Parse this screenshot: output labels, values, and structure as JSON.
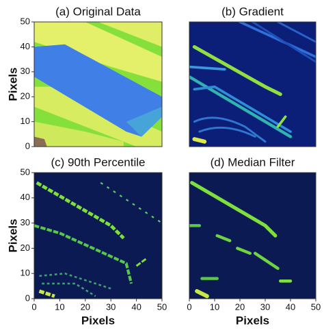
{
  "chart_data": [
    {
      "type": "image",
      "title": "(a) Original Data",
      "ylabel": "Pixels",
      "xlim": [
        0,
        50
      ],
      "ylim": [
        0,
        50
      ],
      "yticks": [
        0,
        10,
        20,
        30,
        40,
        50
      ]
    },
    {
      "type": "image",
      "title": "(b) Gradient",
      "xlim": [
        0,
        50
      ],
      "ylim": [
        0,
        50
      ]
    },
    {
      "type": "image",
      "title": "(c) 90th Percentile",
      "xlabel": "Pixels",
      "ylabel": "Pixels",
      "xlim": [
        0,
        50
      ],
      "ylim": [
        0,
        50
      ],
      "xticks": [
        0,
        10,
        20,
        30,
        40,
        50
      ],
      "yticks": [
        0,
        10,
        20,
        30,
        40,
        50
      ]
    },
    {
      "type": "image",
      "title": "(d) Median Filter",
      "xlabel": "Pixels",
      "xlim": [
        0,
        50
      ],
      "ylim": [
        0,
        50
      ],
      "xticks": [
        0,
        10,
        20,
        30,
        40,
        50
      ]
    }
  ]
}
